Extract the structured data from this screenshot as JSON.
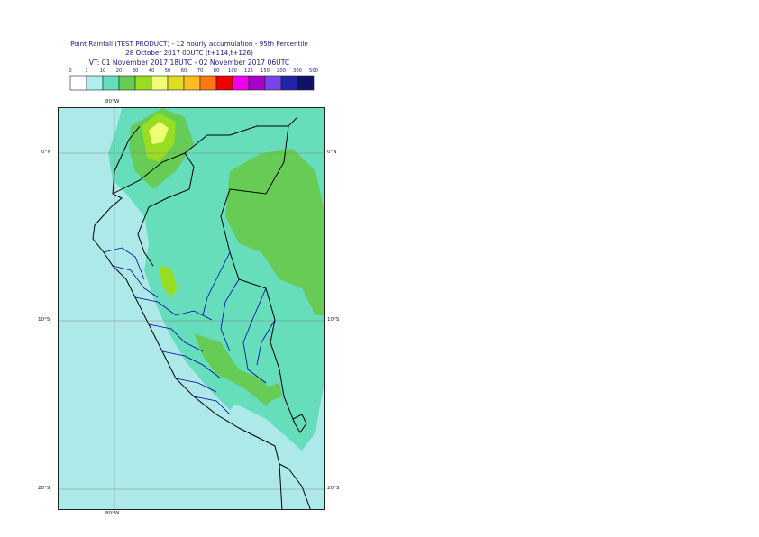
{
  "header": {
    "line1": "Point Rainfall (TEST PRODUCT) - 12 hourly accumulation - 95th Percentile",
    "line2": "28 October 2017 00UTC (t+114,t+126)",
    "line3": "VT: 01 November 2017 18UTC - 02 November 2017 06UTC"
  },
  "legend": {
    "ticks": [
      "0",
      "1",
      "10",
      "20",
      "30",
      "40",
      "50",
      "60",
      "70",
      "80",
      "100",
      "125",
      "150",
      "200",
      "300",
      "500"
    ],
    "colors": [
      "#ffffff",
      "#aeeeee",
      "#66ddbb",
      "#66cc55",
      "#99dd22",
      "#eeff77",
      "#dddd22",
      "#ffbb22",
      "#ff7711",
      "#ee0000",
      "#ee00ee",
      "#aa00cc",
      "#7744ee",
      "#2222aa",
      "#111166"
    ]
  },
  "map": {
    "lon_label_top": "80°W",
    "lon_label_bottom": "80°W",
    "lat_labels_left": [
      "0°N",
      "10°S",
      "20°S"
    ],
    "lat_labels_right": [
      "0°N",
      "10°S",
      "20°S"
    ],
    "colors": {
      "sea_light": "#aee9e9",
      "rain_10": "#66ddbb",
      "rain_20": "#66cc55",
      "rain_30": "#99dd22",
      "rain_40": "#eeff77",
      "rain_50": "#dddd22",
      "border_black": "#000000",
      "border_blue": "#0000aa"
    }
  }
}
